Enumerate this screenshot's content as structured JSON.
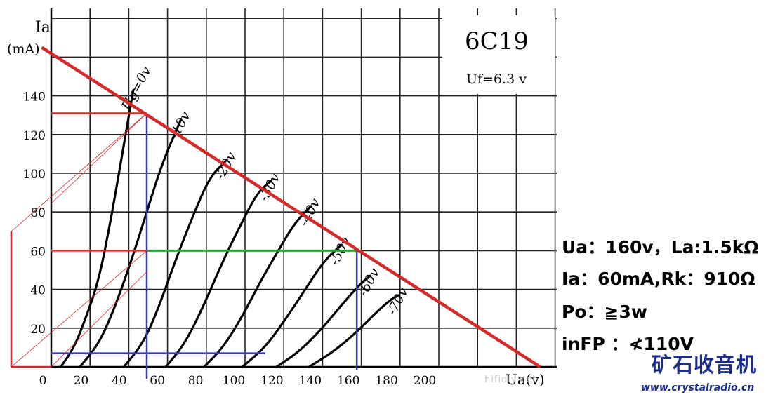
{
  "chart_data": {
    "type": "line",
    "tube_label": "6C19",
    "filament_label": "Uf=6.3 v",
    "y_axis": {
      "label_line1": "Ia",
      "label_line2": "(mA)",
      "ticks": [
        20,
        40,
        60,
        80,
        100,
        120,
        140
      ],
      "range": [
        0,
        160
      ]
    },
    "x_axis": {
      "label": "Ua(v)",
      "ticks": [
        0,
        20,
        40,
        60,
        80,
        100,
        120,
        140,
        160,
        180,
        200
      ],
      "range": [
        0,
        260
      ]
    },
    "series": [
      {
        "name": "Ug=0v",
        "points": [
          [
            5,
            0
          ],
          [
            12,
            10
          ],
          [
            18,
            25
          ],
          [
            25,
            45
          ],
          [
            32,
            80
          ],
          [
            38,
            115
          ],
          [
            43,
            143
          ]
        ]
      },
      {
        "name": "-10v",
        "points": [
          [
            15,
            0
          ],
          [
            25,
            12
          ],
          [
            33,
            30
          ],
          [
            42,
            55
          ],
          [
            50,
            80
          ],
          [
            58,
            105
          ],
          [
            68,
            128
          ]
        ]
      },
      {
        "name": "-20v",
        "points": [
          [
            38,
            0
          ],
          [
            48,
            12
          ],
          [
            56,
            30
          ],
          [
            65,
            55
          ],
          [
            75,
            80
          ],
          [
            83,
            98
          ],
          [
            92,
            107
          ]
        ]
      },
      {
        "name": "-30v",
        "points": [
          [
            60,
            0
          ],
          [
            70,
            12
          ],
          [
            80,
            32
          ],
          [
            90,
            55
          ],
          [
            100,
            75
          ],
          [
            108,
            90
          ],
          [
            115,
            96
          ]
        ]
      },
      {
        "name": "-40v",
        "points": [
          [
            80,
            0
          ],
          [
            90,
            10
          ],
          [
            100,
            26
          ],
          [
            110,
            45
          ],
          [
            120,
            62
          ],
          [
            128,
            75
          ],
          [
            136,
            83
          ]
        ]
      },
      {
        "name": "-50v",
        "points": [
          [
            100,
            0
          ],
          [
            112,
            10
          ],
          [
            123,
            25
          ],
          [
            133,
            40
          ],
          [
            143,
            55
          ],
          [
            152,
            63
          ]
        ]
      },
      {
        "name": "-60v",
        "points": [
          [
            118,
            0
          ],
          [
            130,
            8
          ],
          [
            142,
            20
          ],
          [
            152,
            32
          ],
          [
            162,
            43
          ],
          [
            167,
            47
          ]
        ]
      },
      {
        "name": "-70v",
        "points": [
          [
            135,
            0
          ],
          [
            148,
            8
          ],
          [
            160,
            18
          ],
          [
            170,
            28
          ],
          [
            178,
            35
          ],
          [
            182,
            37
          ]
        ]
      }
    ],
    "load_line": {
      "points": [
        [
          -5,
          165
        ],
        [
          256,
          0
        ]
      ]
    },
    "operating_point": {
      "ua": 160,
      "ia": 60
    },
    "guides": {
      "ia_max": 131,
      "ua_at_max": 50,
      "ia_min": 7,
      "ua_at_min": 112,
      "ua_low": 50
    }
  },
  "specs": {
    "line1": "Ua：160v，La:1.5kΩ",
    "line2": "Ia：60mA,Rk：910Ω",
    "line3": "Po：≧3w",
    "line4": "inFP ：≮110V"
  },
  "brand": {
    "name": "矿石收音机",
    "url": "www.crystalradio.cn"
  },
  "watermark": "hifidiy.net"
}
